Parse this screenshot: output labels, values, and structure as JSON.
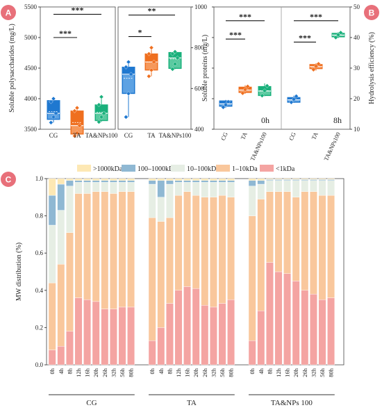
{
  "panel_labels": {
    "a": "A",
    "b": "B",
    "c": "C"
  },
  "colors": {
    "cg": "#1f78d0",
    "cg_light": "#8fc4f2",
    "ta": "#ef6f1f",
    "ta_light": "#fbb98a",
    "tanp": "#19b07b",
    "tanp_light": "#8fe0bf",
    "mw_gt1000": "#fde8b4",
    "mw_100_1000": "#8fb8d3",
    "mw_10_100": "#e6eee4",
    "mw_1_10": "#f9c79c",
    "mw_lt1": "#f4a4a2",
    "badge": "#e8707a"
  },
  "chart_data": [
    {
      "id": "A",
      "type": "box",
      "left": {
        "ylabel": "Soluble polysaccharides (mg/L)",
        "ylim": [
          3500,
          5500
        ],
        "yticks": [
          3500,
          4000,
          4500,
          5000,
          5500
        ],
        "categories": [
          "CG",
          "TA",
          "TA&NPs100"
        ],
        "boxes": [
          {
            "q1": 3660,
            "median": 3760,
            "q3": 3970,
            "min": 3610,
            "max": 4000,
            "mean": 3790,
            "points": [
              3610,
              3700,
              3760,
              3950,
              4000
            ]
          },
          {
            "q1": 3420,
            "median": 3560,
            "q3": 3800,
            "min": 3390,
            "max": 3850,
            "mean": 3610,
            "points": [
              3390,
              3440,
              3560,
              3800,
              3850
            ]
          },
          {
            "q1": 3640,
            "median": 3760,
            "q3": 3900,
            "min": 3620,
            "max": 4030,
            "mean": 3780,
            "points": [
              3620,
              3700,
              3760,
              3900,
              4030
            ]
          }
        ],
        "brackets": [
          {
            "from": 0,
            "to": 2,
            "label": "***",
            "y": 5380
          },
          {
            "from": 0,
            "to": 1,
            "label": "***",
            "y": 5000
          }
        ]
      },
      "right": {
        "ylabel": "",
        "ylim": [
          400,
          1000
        ],
        "yticks": [
          400,
          600,
          800,
          1000
        ],
        "categories": [
          "CG",
          "TA",
          "TA&NPs100"
        ],
        "boxes": [
          {
            "q1": 575,
            "median": 670,
            "q3": 705,
            "min": 460,
            "max": 730,
            "mean": 650,
            "points": [
              460,
              575,
              670,
              705,
              730
            ]
          },
          {
            "q1": 690,
            "median": 730,
            "q3": 770,
            "min": 660,
            "max": 800,
            "mean": 730,
            "points": [
              660,
              690,
              730,
              770,
              800
            ]
          },
          {
            "q1": 698,
            "median": 750,
            "q3": 777,
            "min": 695,
            "max": 780,
            "mean": 745,
            "points": [
              695,
              720,
              750,
              770,
              780
            ]
          }
        ],
        "brackets": [
          {
            "from": 0,
            "to": 2,
            "label": "**",
            "y": 960
          },
          {
            "from": 0,
            "to": 1,
            "label": "*",
            "y": 855
          }
        ]
      }
    },
    {
      "id": "B",
      "type": "box",
      "ylabel_left": "Soluble proteins (mg/L)",
      "ylabel_right": "Hydrolysis efficiency (%)",
      "ylim": [
        10,
        50
      ],
      "yticks": [
        10,
        20,
        30,
        40,
        50
      ],
      "left_ticks_labeled": false,
      "categories": [
        "CG",
        "TA",
        "TA&NPs100",
        "CG",
        "TA",
        "TA&NPs100"
      ],
      "group_labels": [
        "0h",
        "8h"
      ],
      "boxes": [
        {
          "q1": 17.5,
          "median": 18.3,
          "q3": 19.3,
          "min": 17.0,
          "max": 19.6,
          "mean": 18.3,
          "points": [
            17.2,
            18.0,
            19.0
          ]
        },
        {
          "q1": 22.0,
          "median": 22.8,
          "q3": 23.8,
          "min": 21.6,
          "max": 24.4,
          "mean": 22.9,
          "points": [
            21.8,
            23.0,
            24.0
          ]
        },
        {
          "q1": 21.0,
          "median": 22.5,
          "q3": 24.0,
          "min": 20.8,
          "max": 25.0,
          "mean": 22.6,
          "points": [
            21.0,
            22.6,
            24.2
          ]
        },
        {
          "q1": 18.8,
          "median": 19.6,
          "q3": 20.4,
          "min": 18.6,
          "max": 21.0,
          "mean": 19.6,
          "points": [
            18.8,
            19.8,
            20.8
          ]
        },
        {
          "q1": 29.8,
          "median": 30.5,
          "q3": 31.2,
          "min": 29.2,
          "max": 31.6,
          "mean": 30.4,
          "points": [
            29.5,
            30.6,
            31.4
          ]
        },
        {
          "q1": 40.2,
          "median": 40.8,
          "q3": 41.4,
          "min": 39.8,
          "max": 41.8,
          "mean": 40.8,
          "points": [
            40.0,
            40.9,
            41.6
          ]
        }
      ],
      "brackets": [
        {
          "from": 0,
          "to": 2,
          "label": "***",
          "y": 45.5
        },
        {
          "from": 0,
          "to": 1,
          "label": "***",
          "y": 39.5
        },
        {
          "from": 3,
          "to": 5,
          "label": "***",
          "y": 45.5
        },
        {
          "from": 3,
          "to": 4,
          "label": "***",
          "y": 38.5
        }
      ]
    },
    {
      "id": "C",
      "type": "bar",
      "stacked": true,
      "ylabel": "MW distribution (%)",
      "ylim": [
        0,
        1.0
      ],
      "yticks": [
        "0.0",
        "0.2",
        "0.4",
        "0.6",
        "0.8",
        "1.0"
      ],
      "legend": [
        ">1000kDa",
        "100–1000kDa",
        "10–100kDa",
        "1–10kDa",
        "<1kDa"
      ],
      "groups": [
        {
          "name": "CG",
          "categories": [
            "0h",
            "4h",
            "8h",
            "12h",
            "16h",
            "20h",
            "26h",
            "32h",
            "56h",
            "80h"
          ],
          "series": {
            "lt1": [
              0.08,
              0.1,
              0.18,
              0.36,
              0.35,
              0.34,
              0.3,
              0.3,
              0.31,
              0.31
            ],
            "r1_10": [
              0.36,
              0.44,
              0.53,
              0.56,
              0.57,
              0.59,
              0.63,
              0.62,
              0.62,
              0.62
            ],
            "r10_100": [
              0.31,
              0.29,
              0.25,
              0.06,
              0.06,
              0.05,
              0.05,
              0.06,
              0.05,
              0.05
            ],
            "r100_1000": [
              0.16,
              0.14,
              0.03,
              0.01,
              0.01,
              0.01,
              0.01,
              0.01,
              0.01,
              0.01
            ],
            "gt1000": [
              0.09,
              0.03,
              0.01,
              0.01,
              0.01,
              0.01,
              0.01,
              0.01,
              0.01,
              0.01
            ]
          }
        },
        {
          "name": "TA",
          "categories": [
            "0h",
            "4h",
            "8h",
            "12h",
            "16h",
            "20h",
            "26h",
            "32h",
            "56h",
            "80h"
          ],
          "series": {
            "lt1": [
              0.13,
              0.2,
              0.33,
              0.4,
              0.42,
              0.41,
              0.32,
              0.31,
              0.33,
              0.35
            ],
            "r1_10": [
              0.66,
              0.57,
              0.46,
              0.51,
              0.51,
              0.5,
              0.58,
              0.59,
              0.58,
              0.55
            ],
            "r10_100": [
              0.18,
              0.13,
              0.18,
              0.07,
              0.05,
              0.07,
              0.08,
              0.08,
              0.07,
              0.08
            ],
            "r100_1000": [
              0.02,
              0.09,
              0.02,
              0.01,
              0.01,
              0.01,
              0.01,
              0.01,
              0.01,
              0.01
            ],
            "gt1000": [
              0.01,
              0.01,
              0.01,
              0.01,
              0.01,
              0.01,
              0.01,
              0.01,
              0.01,
              0.01
            ]
          }
        },
        {
          "name": "TA&NPs 100",
          "categories": [
            "0h",
            "4h",
            "8h",
            "12h",
            "16h",
            "20h",
            "26h",
            "32h",
            "56h",
            "80h"
          ],
          "series": {
            "lt1": [
              0.13,
              0.29,
              0.55,
              0.5,
              0.49,
              0.45,
              0.4,
              0.38,
              0.35,
              0.36
            ],
            "r1_10": [
              0.67,
              0.6,
              0.38,
              0.43,
              0.44,
              0.45,
              0.53,
              0.55,
              0.56,
              0.55
            ],
            "r10_100": [
              0.16,
              0.08,
              0.06,
              0.06,
              0.06,
              0.09,
              0.06,
              0.06,
              0.08,
              0.08
            ],
            "r100_1000": [
              0.03,
              0.02,
              0.005,
              0.005,
              0.005,
              0.005,
              0.005,
              0.005,
              0.005,
              0.005
            ],
            "gt1000": [
              0.01,
              0.01,
              0.005,
              0.005,
              0.005,
              0.005,
              0.005,
              0.005,
              0.005,
              0.005
            ]
          }
        }
      ]
    }
  ]
}
